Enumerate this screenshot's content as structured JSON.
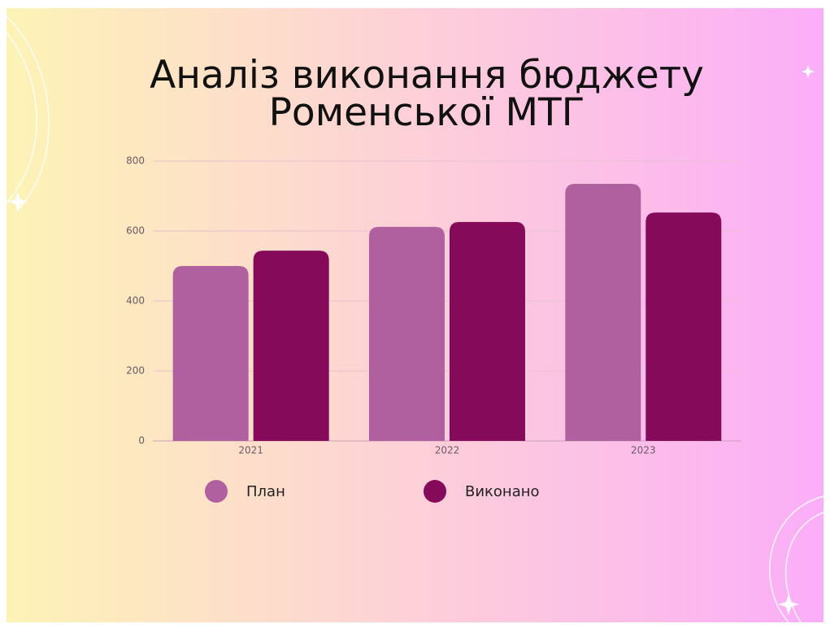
{
  "chart_data": {
    "type": "bar",
    "title": "Аналіз виконання бюджету Роменської МТГ",
    "categories": [
      "2021",
      "2022",
      "2023"
    ],
    "series": [
      {
        "name": "План",
        "color": "#b0609e",
        "values": [
          500,
          612,
          735
        ]
      },
      {
        "name": "Виконано",
        "color": "#850a5a",
        "values": [
          544,
          626,
          653
        ]
      }
    ],
    "ylim": [
      0,
      800
    ],
    "yticks": [
      0,
      200,
      400,
      600,
      800
    ],
    "grid": true
  }
}
